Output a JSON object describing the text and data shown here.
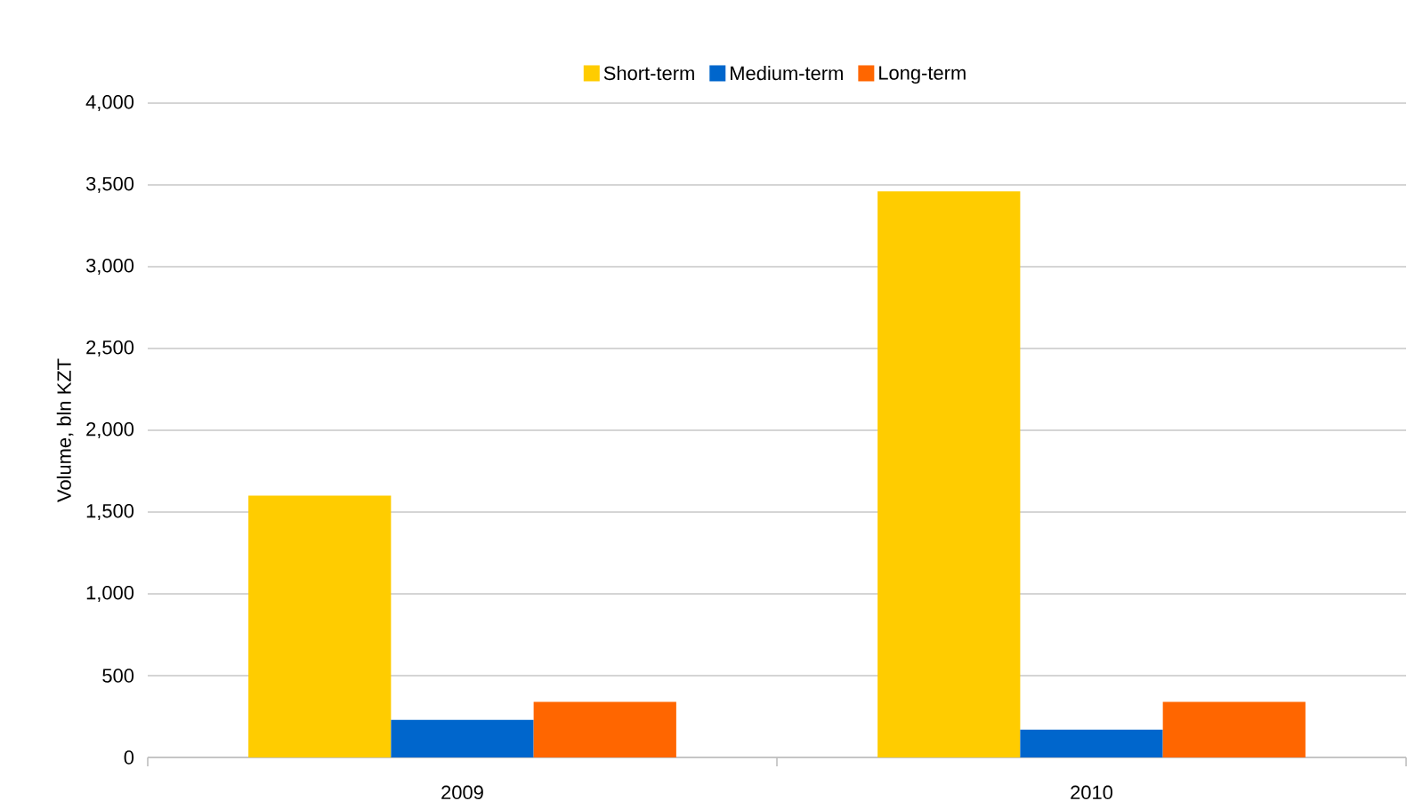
{
  "chart_data": {
    "type": "bar",
    "ylabel": "Volume, bln KZT",
    "categories": [
      "2009",
      "2010"
    ],
    "series": [
      {
        "name": "Short-term",
        "color": "#ffcc00",
        "values": [
          1600,
          3460
        ]
      },
      {
        "name": "Medium-term",
        "color": "#0066cc",
        "values": [
          230,
          170
        ]
      },
      {
        "name": "Long-term",
        "color": "#ff6600",
        "values": [
          340,
          340
        ]
      }
    ],
    "ylim": [
      0,
      4000
    ],
    "yticks": [
      {
        "value": 0,
        "label": "0"
      },
      {
        "value": 500,
        "label": "500"
      },
      {
        "value": 1000,
        "label": "1,000"
      },
      {
        "value": 1500,
        "label": "1,500"
      },
      {
        "value": 2000,
        "label": "2,000"
      },
      {
        "value": 2500,
        "label": "2,500"
      },
      {
        "value": 3000,
        "label": "3,000"
      },
      {
        "value": 3500,
        "label": "3,500"
      },
      {
        "value": 4000,
        "label": "4,000"
      }
    ],
    "grid": "y",
    "legend": "top"
  }
}
